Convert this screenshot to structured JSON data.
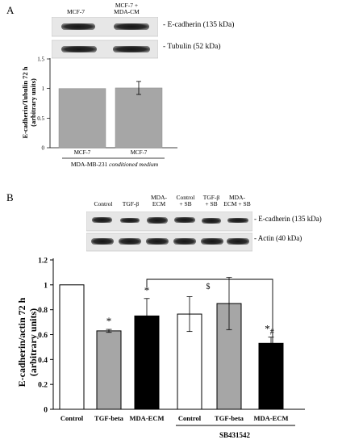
{
  "panel_a": {
    "letter": "A",
    "lane_headers": [
      "MCF-7",
      "MCF-7 +\nMDA-CM"
    ],
    "blots": [
      {
        "label": "- E-cadherin (135 kDa)"
      },
      {
        "label": "- Tubulin (52 kDa)"
      }
    ],
    "ylabel_line1": "E-cadherin/Tubulin 72 h",
    "ylabel_line2": "(arbitrary units)",
    "group_caption_plain": "MDA-MB-231 ",
    "group_caption_italic": "conditioned medium"
  },
  "panel_b": {
    "letter": "B",
    "lane_headers": [
      "Control",
      "TGF-β",
      "MDA-\nECM",
      "Control\n+ SB",
      "TGF-β\n+ SB",
      "MDA-\nECM + SB"
    ],
    "blots": [
      {
        "label": "- E-cadherin (135 kDa)"
      },
      {
        "label": "- Actin (40 kDa)"
      }
    ],
    "ylabel_line1": "E-cadherin/actin 72  h",
    "ylabel_line2": "(arbitrary units)",
    "group_caption": "SB431542",
    "bracket_symbol": "$"
  },
  "chart_data": [
    {
      "type": "bar",
      "categories": [
        "MCF-7",
        "MCF-7"
      ],
      "values": [
        1.0,
        1.01
      ],
      "errors": [
        0.0,
        0.11
      ],
      "yticks": [
        "0",
        "0.5",
        "1",
        "1.5"
      ],
      "ylim": [
        0,
        1.5
      ],
      "bar_color": "#a6a6a6"
    },
    {
      "type": "bar",
      "categories": [
        "Control",
        "TGF-beta",
        "MDA-ECM",
        "Control",
        "TGF-beta",
        "MDA-ECM"
      ],
      "values": [
        1.0,
        0.63,
        0.75,
        0.765,
        0.85,
        0.53
      ],
      "errors": [
        0.0,
        0.012,
        0.14,
        0.14,
        0.21,
        0.05
      ],
      "fills": [
        "#ffffff",
        "#a6a6a6",
        "#000000",
        "#ffffff",
        "#a6a6a6",
        "#000000"
      ],
      "annotations": [
        "",
        "*",
        "*",
        "",
        "",
        "*#"
      ],
      "yticks": [
        "0",
        "0.2",
        "0.4",
        "0.6",
        "0.8",
        "1",
        "1.2"
      ],
      "ylim": [
        0,
        1.2
      ]
    }
  ]
}
